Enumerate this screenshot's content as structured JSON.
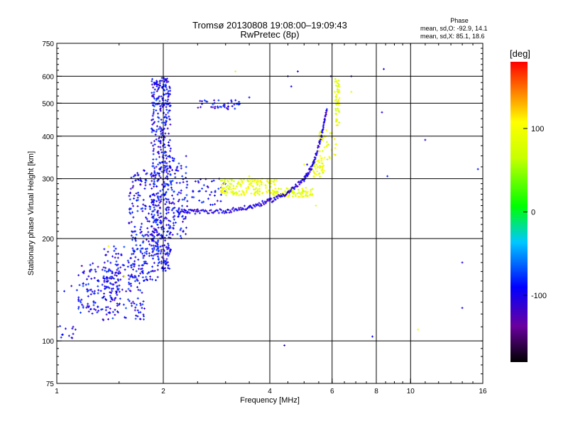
{
  "header": {
    "title_line1": "Tromsø 20130808 19:08:00–19:09:43",
    "title_line2": "RwPretec (8p)",
    "stats_heading": "Phase",
    "stats_o": "mean, sd,O: -92.9, 14.1",
    "stats_x": "mean, sd,X: 85.1, 18.6"
  },
  "colorbar": {
    "unit": "[deg]",
    "ticks": [
      {
        "value": 100,
        "label": "100"
      },
      {
        "value": 0,
        "label": "0"
      },
      {
        "value": -100,
        "label": "-100"
      }
    ],
    "range": [
      -180,
      180
    ]
  },
  "chart_data": {
    "type": "scatter",
    "title": "Tromsø 20130808 19:08:00–19:09:43",
    "subtitle": "RwPretec (8p)",
    "xlabel": "Frequency [MHz]",
    "ylabel": "Stationary phase Virtual Height [km]",
    "xscale": "log",
    "yscale": "log",
    "xlim": [
      1,
      16
    ],
    "ylim": [
      75,
      750
    ],
    "xticks": [
      1,
      2,
      4,
      6,
      8,
      10,
      16
    ],
    "xtick_labels": [
      "1",
      "2",
      "4",
      "6",
      "8",
      "10",
      "16"
    ],
    "yticks": [
      75,
      100,
      200,
      300,
      400,
      500,
      600,
      750
    ],
    "ytick_labels": [
      "75",
      "100",
      "200",
      "300",
      "400",
      "500",
      "600",
      "750"
    ],
    "grid": true,
    "color_variable": "Phase [deg]",
    "series": [
      {
        "mode": "O",
        "phase": -95,
        "clouds": [
          {
            "x": [
              1.0,
              1.13
            ],
            "y": [
              100,
              112
            ],
            "n": 12
          },
          {
            "x": [
              1.15,
              1.5
            ],
            "y": [
              120,
              170
            ],
            "n": 140
          },
          {
            "x": [
              1.35,
              1.8
            ],
            "y": [
              115,
              190
            ],
            "n": 160
          },
          {
            "x": [
              1.6,
              1.95
            ],
            "y": [
              150,
              320
            ],
            "n": 220
          },
          {
            "x": [
              1.85,
              2.1
            ],
            "y": [
              160,
              600
            ],
            "n": 520
          },
          {
            "x": [
              2.1,
              2.35
            ],
            "y": [
              200,
              350
            ],
            "n": 90
          },
          {
            "x": [
              2.45,
              3.3
            ],
            "y": [
              480,
              510
            ],
            "n": 40
          },
          {
            "x": [
              2.4,
              3.0
            ],
            "y": [
              250,
              300
            ],
            "n": 40
          }
        ],
        "points": [
          [
            2.2,
            240
          ],
          [
            2.5,
            240
          ],
          [
            3.0,
            241
          ],
          [
            3.5,
            247
          ],
          [
            4.0,
            258
          ],
          [
            4.5,
            273
          ],
          [
            5.0,
            298
          ],
          [
            5.3,
            330
          ],
          [
            5.6,
            400
          ],
          [
            5.8,
            480
          ],
          [
            5.95,
            600
          ],
          [
            4.6,
            560
          ],
          [
            4.5,
            600
          ],
          [
            4.8,
            620
          ],
          [
            3.5,
            520
          ],
          [
            3.2,
            510
          ],
          [
            5.1,
            330
          ],
          [
            4.3,
            270
          ],
          [
            1.05,
            140
          ],
          [
            1.1,
            145
          ],
          [
            1.14,
            141
          ],
          [
            8.4,
            630
          ],
          [
            8.3,
            470
          ],
          [
            8.6,
            305
          ],
          [
            11.0,
            390
          ],
          [
            14.0,
            170
          ],
          [
            14.0,
            125
          ],
          [
            15.5,
            320
          ],
          [
            4.4,
            97
          ],
          [
            7.8,
            103
          ],
          [
            6.8,
            600
          ]
        ]
      },
      {
        "mode": "X",
        "phase": 90,
        "clouds": [
          {
            "x": [
              2.9,
              4.2
            ],
            "y": [
              268,
              300
            ],
            "n": 170
          },
          {
            "x": [
              4.1,
              5.3
            ],
            "y": [
              265,
              282
            ],
            "n": 80
          },
          {
            "x": [
              5.3,
              5.7
            ],
            "y": [
              300,
              340
            ],
            "n": 40
          },
          {
            "x": [
              5.5,
              6.2
            ],
            "y": [
              340,
              420
            ],
            "n": 40
          },
          {
            "x": [
              6.1,
              6.3
            ],
            "y": [
              430,
              590
            ],
            "n": 50
          }
        ],
        "points": [
          [
            3.5,
            305
          ],
          [
            5.0,
            330
          ],
          [
            6.8,
            540
          ],
          [
            10.5,
            108
          ],
          [
            3.2,
            620
          ],
          [
            1.55,
            155
          ],
          [
            1.4,
            190
          ],
          [
            5.4,
            250
          ]
        ]
      }
    ]
  }
}
